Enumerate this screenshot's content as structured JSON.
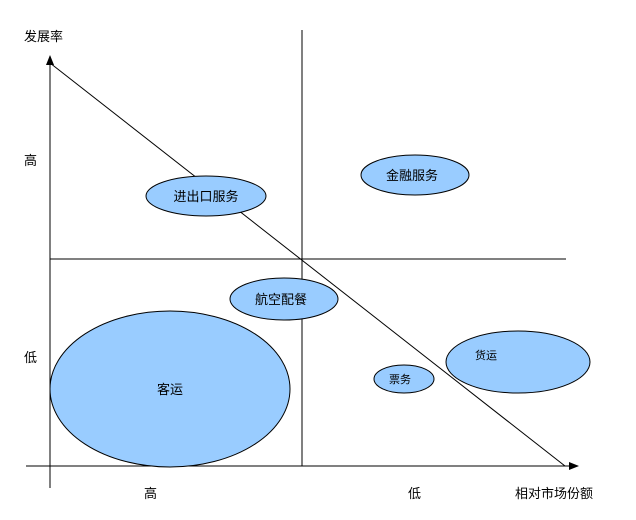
{
  "axes": {
    "y_label": "发展率",
    "x_label": "相对市场份额",
    "y_high": "高",
    "y_low": "低",
    "x_high": "高",
    "x_low": "低"
  },
  "bubbles": [
    {
      "name": "进出口服务"
    },
    {
      "name": "金融服务"
    },
    {
      "name": "航空配餐"
    },
    {
      "name": "客运"
    },
    {
      "name": "票务"
    },
    {
      "name": "货运"
    }
  ],
  "colors": {
    "bubble_fill": "#99ccff",
    "stroke": "#000000",
    "background": "#ffffff"
  }
}
